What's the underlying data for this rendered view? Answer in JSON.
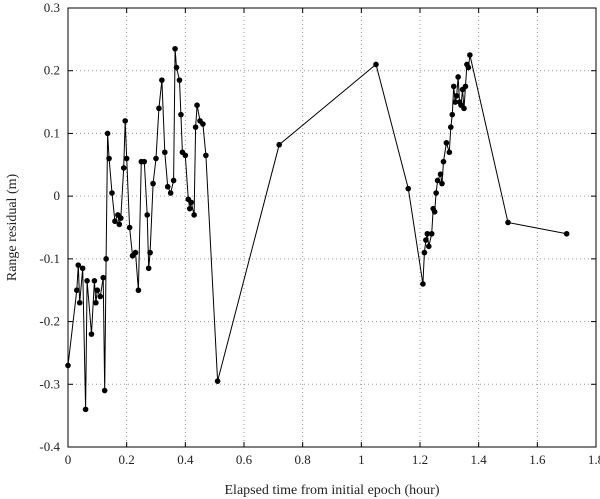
{
  "chart_data": {
    "type": "line",
    "title": "",
    "xlabel": "Elapsed time from initial epoch (hour)",
    "ylabel": "Range residual (m)",
    "xlim": [
      0,
      1.8
    ],
    "ylim": [
      -0.4,
      0.3
    ],
    "xticks": [
      "0",
      "0.2",
      "0.4",
      "0.6",
      "0.8",
      "1",
      "1.2",
      "1.4",
      "1.6",
      "1.8"
    ],
    "yticks": [
      "0.3",
      "0.2",
      "0.1",
      "0",
      "-0.1",
      "-0.2",
      "-0.3",
      "-0.4"
    ],
    "grid": true,
    "marker": "filled-circle",
    "line_color": "#000000",
    "series": [
      {
        "x": [
          0.0,
          0.03,
          0.035,
          0.04,
          0.05,
          0.06,
          0.065,
          0.08,
          0.09,
          0.095,
          0.1,
          0.11,
          0.12,
          0.125,
          0.13,
          0.135,
          0.14,
          0.15,
          0.16,
          0.17,
          0.175,
          0.18,
          0.19,
          0.195,
          0.2,
          0.21,
          0.22,
          0.23,
          0.24,
          0.25,
          0.26,
          0.27,
          0.275,
          0.28,
          0.29,
          0.3,
          0.31,
          0.32,
          0.33,
          0.34,
          0.35,
          0.36,
          0.365,
          0.37,
          0.38,
          0.385,
          0.39,
          0.4,
          0.41,
          0.415,
          0.42,
          0.43,
          0.435,
          0.44,
          0.45,
          0.46,
          0.47,
          0.51,
          0.72,
          1.05,
          1.16,
          1.21,
          1.215,
          1.22,
          1.225,
          1.23,
          1.24,
          1.245,
          1.25,
          1.255,
          1.26,
          1.27,
          1.275,
          1.28,
          1.29,
          1.3,
          1.305,
          1.31,
          1.315,
          1.32,
          1.325,
          1.33,
          1.335,
          1.34,
          1.345,
          1.35,
          1.355,
          1.36,
          1.365,
          1.37,
          1.5,
          1.7
        ],
        "y": [
          -0.27,
          -0.15,
          -0.11,
          -0.17,
          -0.115,
          -0.34,
          -0.135,
          -0.22,
          -0.135,
          -0.17,
          -0.15,
          -0.16,
          -0.13,
          -0.31,
          -0.1,
          0.1,
          0.06,
          0.005,
          -0.04,
          -0.03,
          -0.045,
          -0.035,
          0.045,
          0.12,
          0.06,
          -0.05,
          -0.095,
          -0.09,
          -0.15,
          0.055,
          0.055,
          -0.03,
          -0.115,
          -0.09,
          0.02,
          0.06,
          0.14,
          0.185,
          0.07,
          0.015,
          0.005,
          0.025,
          0.235,
          0.205,
          0.185,
          0.13,
          0.07,
          0.065,
          -0.005,
          -0.02,
          -0.01,
          -0.03,
          0.11,
          0.145,
          0.12,
          0.115,
          0.065,
          -0.295,
          0.082,
          0.21,
          0.012,
          -0.14,
          -0.09,
          -0.07,
          -0.06,
          -0.08,
          -0.06,
          -0.02,
          -0.025,
          0.005,
          0.025,
          0.035,
          0.02,
          0.055,
          0.085,
          0.07,
          0.11,
          0.13,
          0.175,
          0.15,
          0.16,
          0.19,
          0.15,
          0.145,
          0.17,
          0.14,
          0.175,
          0.21,
          0.205,
          0.225,
          -0.042,
          -0.06
        ]
      }
    ]
  }
}
